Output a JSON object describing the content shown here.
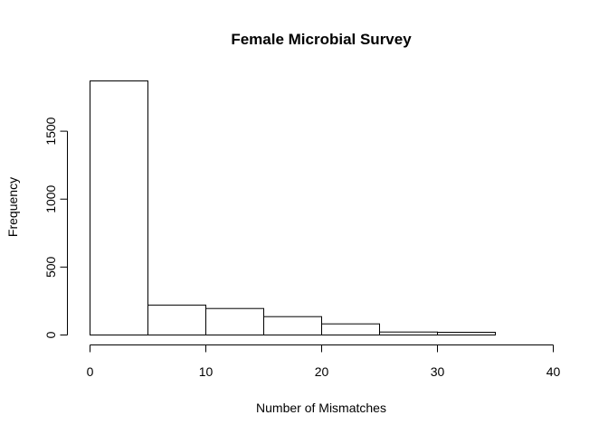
{
  "chart_data": {
    "type": "bar",
    "title": "Female Microbial Survey",
    "xlabel": "Number of Mismatches",
    "ylabel": "Frequency",
    "bins": [
      {
        "from": 0,
        "to": 5,
        "value": 1870
      },
      {
        "from": 5,
        "to": 10,
        "value": 220
      },
      {
        "from": 10,
        "to": 15,
        "value": 195
      },
      {
        "from": 15,
        "to": 20,
        "value": 135
      },
      {
        "from": 20,
        "to": 25,
        "value": 82
      },
      {
        "from": 25,
        "to": 30,
        "value": 22
      },
      {
        "from": 30,
        "to": 35,
        "value": 20
      },
      {
        "from": 35,
        "to": 40,
        "value": 0
      }
    ],
    "xlim": [
      0,
      40
    ],
    "ylim": [
      0,
      1870
    ],
    "xticks": [
      "0",
      "10",
      "20",
      "30",
      "40"
    ],
    "yticks": [
      "0",
      "500",
      "1000",
      "1500"
    ],
    "grid": false,
    "legend": "none"
  }
}
